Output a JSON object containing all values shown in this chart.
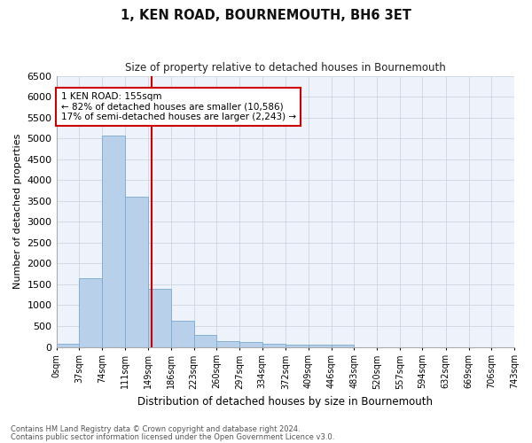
{
  "title": "1, KEN ROAD, BOURNEMOUTH, BH6 3ET",
  "subtitle": "Size of property relative to detached houses in Bournemouth",
  "xlabel": "Distribution of detached houses by size in Bournemouth",
  "ylabel": "Number of detached properties",
  "footer_line1": "Contains HM Land Registry data © Crown copyright and database right 2024.",
  "footer_line2": "Contains public sector information licensed under the Open Government Licence v3.0.",
  "annotation_line1": "1 KEN ROAD: 155sqm",
  "annotation_line2": "← 82% of detached houses are smaller (10,586)",
  "annotation_line3": "17% of semi-detached houses are larger (2,243) →",
  "bin_edges": [
    0,
    37,
    74,
    111,
    149,
    186,
    223,
    260,
    297,
    334,
    372,
    409,
    446,
    483,
    520,
    557,
    594,
    632,
    669,
    706,
    743
  ],
  "bar_heights": [
    75,
    1650,
    5060,
    3600,
    1400,
    620,
    290,
    145,
    110,
    80,
    60,
    55,
    50,
    0,
    0,
    0,
    0,
    0,
    0,
    0
  ],
  "bar_color": "#b8d0ea",
  "bar_edge_color": "#7aaad0",
  "vline_color": "#cc0000",
  "vline_x": 155,
  "annotation_box_color": "#cc0000",
  "ylim": [
    0,
    6500
  ],
  "yticks": [
    0,
    500,
    1000,
    1500,
    2000,
    2500,
    3000,
    3500,
    4000,
    4500,
    5000,
    5500,
    6000,
    6500
  ],
  "grid_color": "#c8d0e0",
  "background_color": "#eef2fa"
}
